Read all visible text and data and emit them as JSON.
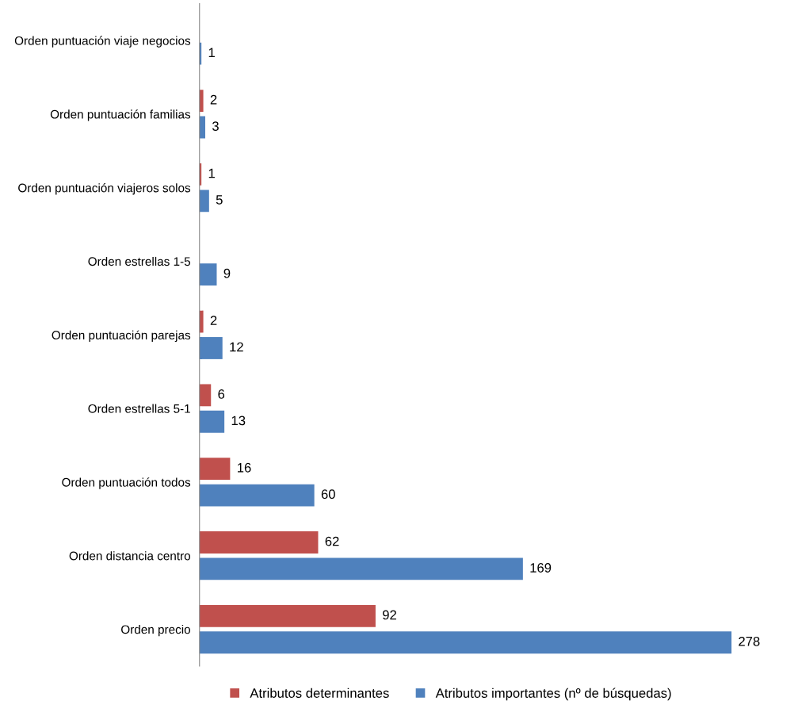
{
  "chart_data": {
    "type": "bar",
    "orientation": "horizontal",
    "categories": [
      "Orden puntuación viaje negocios",
      "Orden puntuación familias",
      "Orden puntuación viajeros solos",
      "Orden estrellas 1-5",
      "Orden puntuación parejas",
      "Orden estrellas 5-1",
      "Orden puntuación todos",
      "Orden distancia centro",
      "Orden precio"
    ],
    "series": [
      {
        "name": "Atributos determinantes",
        "color": "#c0504d",
        "values": [
          null,
          2,
          1,
          null,
          2,
          6,
          16,
          62,
          92
        ]
      },
      {
        "name": "Atributos importantes (nº de búsquedas)",
        "color": "#4f81bd",
        "values": [
          1,
          3,
          5,
          9,
          12,
          13,
          60,
          169,
          278
        ]
      }
    ],
    "data_labels": true,
    "legend": "bottom",
    "tick_labels": "y"
  }
}
